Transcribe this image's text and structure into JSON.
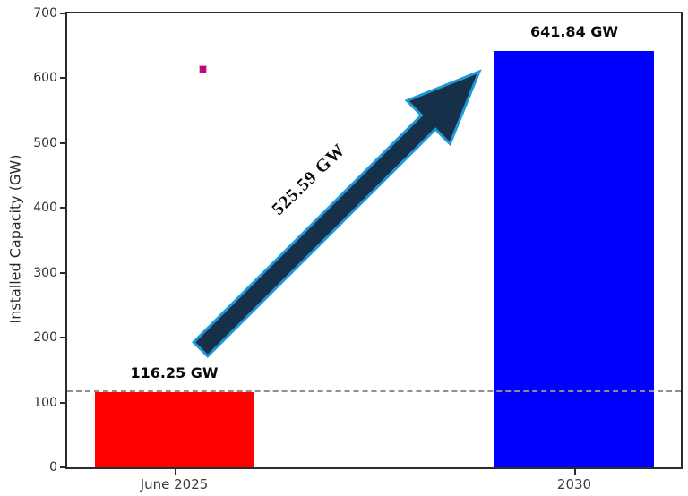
{
  "figure": {
    "background": "#ffffff"
  },
  "chart_data": {
    "type": "bar",
    "title": "",
    "xlabel": "",
    "ylabel": "Installed Capacity (GW)",
    "categories": [
      "June 2025",
      "2030"
    ],
    "values": [
      116.25,
      641.84
    ],
    "bar_labels": [
      "116.25 GW",
      "641.84 GW"
    ],
    "bar_colors": [
      "#ff0000",
      "#0000ff"
    ],
    "ylim": [
      0,
      700
    ],
    "yticks": [
      0,
      100,
      200,
      300,
      400,
      500,
      600,
      700
    ],
    "grid": false,
    "legend": "none",
    "annotations": {
      "growth_arrow_label": "525.59 GW",
      "growth_arrow_direction": "up-right",
      "dashed_reference_value": 116.25
    }
  },
  "colors": {
    "bar_june_2025": "#ff0000",
    "bar_2030": "#0000ff",
    "arrow_fill": "#17304a",
    "arrow_outline": "#1d9ad6",
    "dashed_line": "#8f8f8f",
    "marker_dot_fill": "#c2067e",
    "marker_dot_edge": "#eba6d2",
    "axis": "#2b2b2b"
  }
}
